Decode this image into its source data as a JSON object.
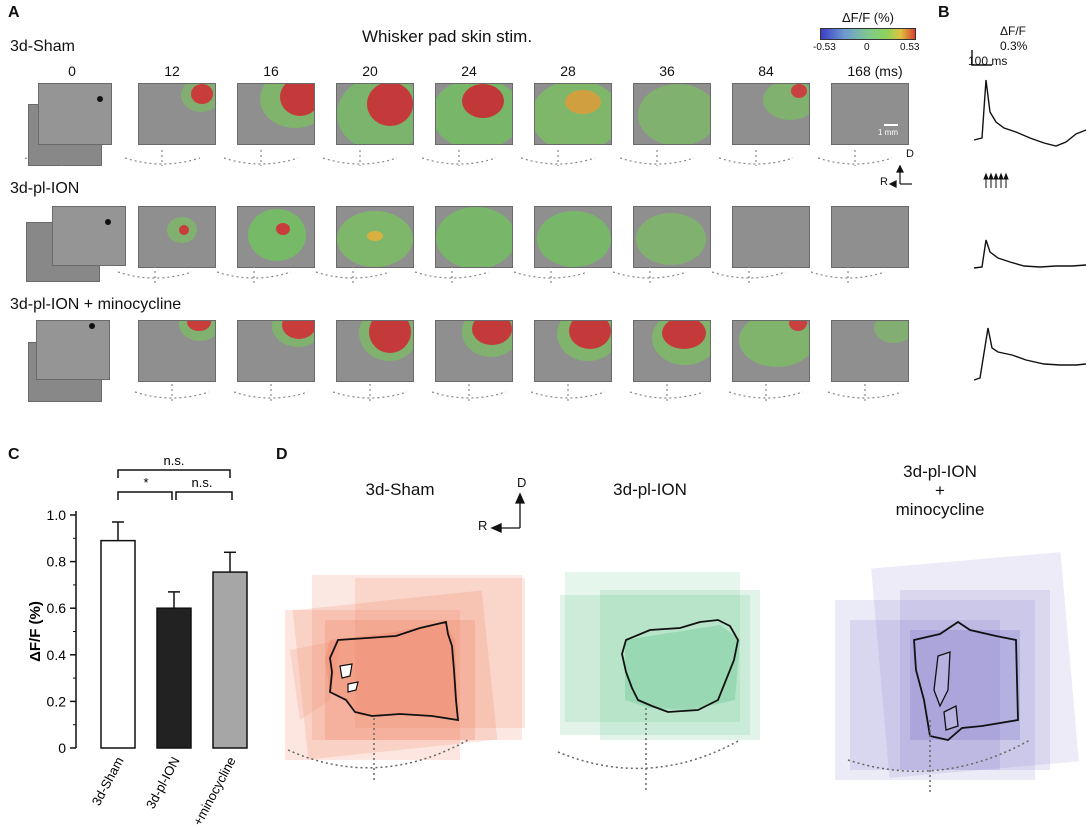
{
  "panels": {
    "a": "A",
    "b": "B",
    "c": "C",
    "d": "D"
  },
  "panelA": {
    "title": "Whisker pad skin stim.",
    "rows": [
      "3d-Sham",
      "3d-pl-ION",
      "3d-pl-ION + minocycline"
    ],
    "times": [
      "0",
      "12",
      "16",
      "20",
      "24",
      "28",
      "36",
      "84",
      "168 (ms)"
    ],
    "colorbar": {
      "label": "ΔF/F (%)",
      "min": "-0.53",
      "mid": "0",
      "max": "0.53"
    },
    "scale_bar": "1 mm",
    "orientation": {
      "d": "D",
      "r": "R"
    }
  },
  "panelB": {
    "unit": "ΔF/F",
    "amplitude": "0.3%",
    "time": "100 ms"
  },
  "panelD": {
    "conditions": [
      "3d-Sham",
      "3d-pl-ION",
      "3d-pl-ION\n+\nminocycline"
    ],
    "orientation": {
      "d": "D",
      "r": "R"
    },
    "colors": [
      "#f08060",
      "#5cc486",
      "#7a72c8"
    ]
  },
  "chart_data": {
    "type": "bar",
    "categories": [
      "3d-Sham",
      "3d-pl-ION",
      "+minocycline"
    ],
    "values": [
      0.89,
      0.6,
      0.755
    ],
    "errors": [
      0.08,
      0.07,
      0.085
    ],
    "bar_colors": [
      "#ffffff",
      "#222222",
      "#a6a6a6"
    ],
    "ylabel": "ΔF/F (%)",
    "ylim": [
      0,
      1.0
    ],
    "yticks": [
      "0",
      "0.2",
      "0.4",
      "0.6",
      "0.8",
      "1.0"
    ],
    "significance": [
      {
        "pair": [
          "3d-Sham",
          "+minocycline"
        ],
        "label": "n.s."
      },
      {
        "pair": [
          "3d-Sham",
          "3d-pl-ION"
        ],
        "label": "*"
      },
      {
        "pair": [
          "3d-pl-ION",
          "+minocycline"
        ],
        "label": "n.s."
      }
    ]
  }
}
